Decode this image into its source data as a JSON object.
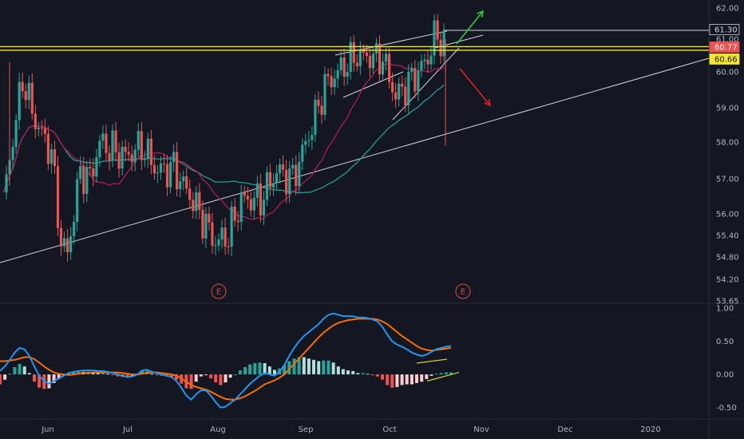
{
  "chart_data": [
    {
      "type": "candlestick",
      "title": "",
      "xlabel": "",
      "ylabel": "",
      "ylim": [
        53.65,
        62.0
      ],
      "y_scale": "log",
      "x_tick_labels": [
        "Jun",
        "Jul",
        "Aug",
        "Sep",
        "Oct",
        "Nov",
        "Dec",
        "2020"
      ],
      "y_tick_labels": [
        "62.00",
        "61.00",
        "60.00",
        "59.00",
        "58.00",
        "57.00",
        "56.00",
        "55.40",
        "54.80",
        "54.20",
        "53.65"
      ],
      "y_tick_values": [
        62.0,
        61.0,
        60.0,
        59.0,
        58.0,
        57.0,
        56.0,
        55.4,
        54.8,
        54.2,
        53.65
      ],
      "price_tags": [
        {
          "label": "61.30",
          "value": 61.3,
          "style": "white"
        },
        {
          "label": "60.77",
          "value": 60.77,
          "style": "red"
        },
        {
          "label": "60.66",
          "value": 60.66,
          "style": "yellow"
        }
      ],
      "horizontal_lines": [
        {
          "value": 61.3,
          "color": "#d1d4dc"
        },
        {
          "value": 60.77,
          "color": "#f5e52a"
        },
        {
          "value": 60.66,
          "color": "#f5e52a"
        }
      ],
      "earnings_markers": [
        {
          "label": "E",
          "date": "Jul 30"
        },
        {
          "label": "E",
          "date": "Oct 22"
        }
      ],
      "colors": {
        "up": "#26a69a",
        "down": "#ef5350",
        "ma_fast": "#c2185b",
        "ma_slow": "#26a69a"
      }
    },
    {
      "type": "macd",
      "title": "",
      "ylim": [
        -0.65,
        1.05
      ],
      "y_tick_labels": [
        "1.00",
        "0.50",
        "0.00",
        "-0.50"
      ],
      "y_tick_values": [
        1.0,
        0.5,
        0.0,
        -0.5
      ],
      "series": [
        {
          "role": "macd",
          "color": "#2196f3"
        },
        {
          "role": "signal",
          "color": "#ff6d00"
        }
      ],
      "macd": [
        0.05,
        0.12,
        0.22,
        0.33,
        0.4,
        0.38,
        0.28,
        0.12,
        -0.02,
        -0.1,
        -0.14,
        -0.1,
        -0.06,
        -0.02,
        0.02,
        0.04,
        0.05,
        0.06,
        0.06,
        0.06,
        0.05,
        0.05,
        0.04,
        0.02,
        0.0,
        -0.02,
        -0.04,
        -0.03,
        0.0,
        0.06,
        0.07,
        0.04,
        0.02,
        0.0,
        -0.02,
        -0.04,
        -0.1,
        -0.2,
        -0.32,
        -0.38,
        -0.3,
        -0.24,
        -0.24,
        -0.32,
        -0.42,
        -0.5,
        -0.49,
        -0.43,
        -0.38,
        -0.3,
        -0.22,
        -0.14,
        -0.08,
        -0.02,
        0.02,
        0.0,
        -0.02,
        0.04,
        0.14,
        0.28,
        0.4,
        0.5,
        0.58,
        0.64,
        0.7,
        0.76,
        0.84,
        0.9,
        0.92,
        0.9,
        0.88,
        0.88,
        0.88,
        0.86,
        0.86,
        0.85,
        0.83,
        0.8,
        0.72,
        0.6,
        0.5,
        0.45,
        0.42,
        0.38,
        0.33,
        0.3,
        0.28,
        0.3,
        0.34,
        0.38,
        0.4,
        0.42,
        0.43
      ],
      "signal": [
        0.2,
        0.2,
        0.21,
        0.22,
        0.24,
        0.26,
        0.26,
        0.23,
        0.18,
        0.12,
        0.07,
        0.03,
        0.01,
        0.0,
        -0.01,
        0.0,
        0.01,
        0.02,
        0.02,
        0.03,
        0.03,
        0.03,
        0.03,
        0.03,
        0.03,
        0.02,
        0.01,
        0.0,
        0.0,
        0.01,
        0.02,
        0.03,
        0.03,
        0.02,
        0.01,
        0.0,
        -0.02,
        -0.06,
        -0.11,
        -0.16,
        -0.19,
        -0.21,
        -0.23,
        -0.26,
        -0.3,
        -0.34,
        -0.37,
        -0.38,
        -0.38,
        -0.36,
        -0.33,
        -0.29,
        -0.25,
        -0.2,
        -0.15,
        -0.12,
        -0.09,
        -0.05,
        0.0,
        0.08,
        0.16,
        0.24,
        0.32,
        0.4,
        0.48,
        0.56,
        0.63,
        0.69,
        0.74,
        0.78,
        0.8,
        0.82,
        0.83,
        0.84,
        0.84,
        0.84,
        0.84,
        0.83,
        0.8,
        0.76,
        0.7,
        0.64,
        0.58,
        0.53,
        0.48,
        0.43,
        0.39,
        0.37,
        0.36,
        0.37,
        0.38,
        0.39,
        0.4
      ],
      "annotation_lines": [
        {
          "color": "#c6d63a",
          "from": 0.17,
          "to": 0.23
        },
        {
          "color": "#c6d63a",
          "from": -0.1,
          "to": 0.03
        }
      ]
    }
  ]
}
